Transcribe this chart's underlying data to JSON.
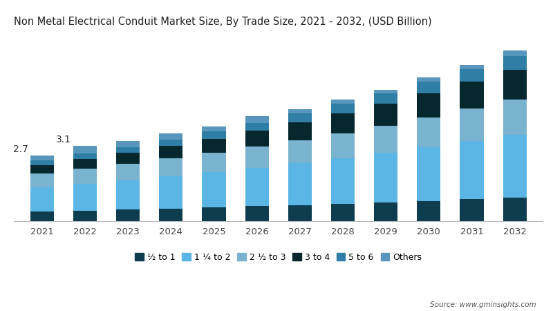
{
  "title": "Non Metal Electrical Conduit Market Size, By Trade Size, 2021 - 2032, (USD Billion)",
  "years": [
    2021,
    2022,
    2023,
    2024,
    2025,
    2026,
    2027,
    2028,
    2029,
    2030,
    2031,
    2032
  ],
  "series": {
    "½ to 1": [
      0.4,
      0.44,
      0.48,
      0.52,
      0.57,
      0.62,
      0.67,
      0.72,
      0.78,
      0.84,
      0.91,
      0.98
    ],
    "1 ¼ to 2": [
      1.0,
      1.1,
      1.2,
      1.32,
      1.44,
      1.57,
      1.71,
      1.86,
      2.02,
      2.19,
      2.37,
      2.56
    ],
    "2 ½ to 3": [
      0.55,
      0.61,
      0.67,
      0.73,
      0.8,
      0.87,
      0.95,
      1.03,
      1.12,
      1.22,
      1.33,
      1.44
    ],
    "3 to 4": [
      0.35,
      0.4,
      0.46,
      0.52,
      0.58,
      0.65,
      0.73,
      0.81,
      0.9,
      1.0,
      1.11,
      1.23
    ],
    "5 to 6": [
      0.2,
      0.22,
      0.24,
      0.27,
      0.3,
      0.33,
      0.36,
      0.4,
      0.44,
      0.48,
      0.53,
      0.58
    ],
    "Others": [
      0.2,
      0.33,
      0.25,
      0.24,
      0.21,
      0.26,
      0.18,
      0.18,
      0.14,
      0.17,
      0.15,
      0.21
    ]
  },
  "colors": {
    "½ to 1": "#0d3d4f",
    "1 ¼ to 2": "#5bb5e5",
    "2 ½ to 3": "#7ab3cf",
    "3 to 4": "#07272f",
    "5 to 6": "#2e7ea6",
    "Others": "#5896bc"
  },
  "annotations": {
    "2021": "2.7",
    "2022": "3.1"
  },
  "ylim": [
    0,
    7.5
  ],
  "bar_width": 0.55,
  "background_color": "#ffffff",
  "source_text": "Source: www.gminsights.com"
}
